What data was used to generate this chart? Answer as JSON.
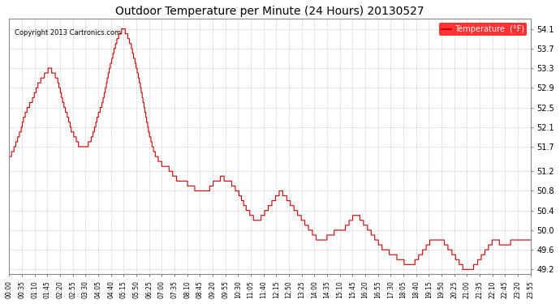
{
  "title": "Outdoor Temperature per Minute (24 Hours) 20130527",
  "copyright": "Copyright 2013 Cartronics.com",
  "legend_label": "Temperature  (°F)",
  "line_color": "#cc0000",
  "background_color": "#ffffff",
  "plot_bg_color": "#ffffff",
  "grid_color": "#aaaaaa",
  "ylim": [
    49.1,
    54.3
  ],
  "yticks": [
    49.2,
    49.6,
    50.0,
    50.4,
    50.8,
    51.2,
    51.7,
    52.1,
    52.5,
    52.9,
    53.3,
    53.7,
    54.1
  ],
  "xtick_labels": [
    "00:00",
    "00:35",
    "01:10",
    "01:45",
    "02:20",
    "02:55",
    "03:30",
    "04:05",
    "04:40",
    "05:15",
    "05:50",
    "06:25",
    "07:00",
    "07:35",
    "08:10",
    "08:45",
    "09:20",
    "09:55",
    "10:30",
    "11:05",
    "11:40",
    "12:15",
    "12:50",
    "13:25",
    "14:00",
    "14:35",
    "15:10",
    "15:45",
    "16:20",
    "16:55",
    "17:30",
    "18:05",
    "18:40",
    "19:15",
    "19:50",
    "20:25",
    "21:00",
    "21:35",
    "22:10",
    "22:45",
    "23:20",
    "23:55"
  ],
  "temperature_profile": [
    51.5,
    51.6,
    51.8,
    52.0,
    52.3,
    52.5,
    52.6,
    52.8,
    53.0,
    53.1,
    53.2,
    53.3,
    53.2,
    53.1,
    52.8,
    52.5,
    52.3,
    52.0,
    51.9,
    51.7,
    51.7,
    51.7,
    51.8,
    52.0,
    52.3,
    52.5,
    52.8,
    53.2,
    53.5,
    53.8,
    54.0,
    54.1,
    54.0,
    53.8,
    53.5,
    53.2,
    52.8,
    52.4,
    52.0,
    51.7,
    51.5,
    51.4,
    51.3,
    51.3,
    51.2,
    51.1,
    51.0,
    51.0,
    51.0,
    50.9,
    50.9,
    50.8,
    50.8,
    50.8,
    50.8,
    50.9,
    51.0,
    51.0,
    51.1,
    51.0,
    51.0,
    50.9,
    50.8,
    50.7,
    50.5,
    50.4,
    50.3,
    50.2,
    50.2,
    50.3,
    50.4,
    50.5,
    50.6,
    50.7,
    50.8,
    50.7,
    50.6,
    50.5,
    50.4,
    50.3,
    50.2,
    50.1,
    50.0,
    49.9,
    49.8,
    49.8,
    49.8,
    49.9,
    49.9,
    50.0,
    50.0,
    50.0,
    50.1,
    50.2,
    50.3,
    50.3,
    50.2,
    50.1,
    50.0,
    49.9,
    49.8,
    49.7,
    49.6,
    49.6,
    49.5,
    49.5,
    49.4,
    49.4,
    49.3,
    49.3,
    49.3,
    49.4,
    49.5,
    49.6,
    49.7,
    49.8,
    49.8,
    49.8,
    49.8,
    49.7,
    49.6,
    49.5,
    49.4,
    49.3,
    49.2,
    49.2,
    49.2,
    49.3,
    49.4,
    49.5,
    49.6,
    49.7,
    49.8,
    49.8,
    49.7,
    49.7,
    49.7,
    49.8,
    49.8,
    49.8,
    49.8,
    49.8,
    49.8
  ]
}
